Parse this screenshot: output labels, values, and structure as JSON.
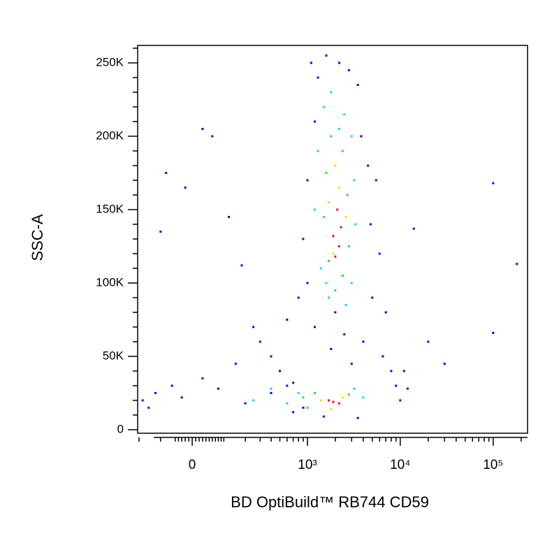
{
  "chart_data": {
    "type": "scatter",
    "xlabel": "BD OptiBuild™ RB744 CD59",
    "ylabel": "SSC-A",
    "xscale": "biexponential",
    "xlim": [
      -208,
      234600
    ],
    "ylim": [
      -2381,
      261905
    ],
    "xticks": [
      0,
      {
        "value": 1000,
        "label": "10³"
      },
      {
        "value": 10000,
        "label": "10⁴"
      },
      {
        "value": 100000,
        "label": "10⁵"
      }
    ],
    "xminorticks": [
      -200,
      -100,
      -50,
      -40,
      -30,
      -20,
      -10,
      10,
      20,
      30,
      40,
      50,
      60,
      70,
      80,
      90,
      100,
      200,
      300,
      400,
      500,
      600,
      700,
      800,
      900,
      2000,
      3000,
      4000,
      5000,
      6000,
      7000,
      8000,
      9000,
      20000,
      30000,
      40000,
      50000,
      60000,
      70000,
      80000,
      90000,
      200000
    ],
    "yticks": [
      0,
      {
        "value": 50000,
        "label": "50K"
      },
      {
        "value": 100000,
        "label": "100K"
      },
      {
        "value": 150000,
        "label": "150K"
      },
      {
        "value": 200000,
        "label": "200K"
      },
      {
        "value": 250000,
        "label": "250K"
      }
    ],
    "yminorticks": [
      10000,
      20000,
      30000,
      40000,
      60000,
      70000,
      80000,
      90000,
      110000,
      120000,
      130000,
      140000,
      160000,
      170000,
      180000,
      190000,
      210000,
      220000,
      230000,
      240000,
      260000
    ],
    "series": [
      {
        "color": "#0000ff",
        "x": [
          -180,
          -120,
          -60,
          -150,
          -30,
          30,
          80,
          150,
          200,
          300,
          400,
          500,
          600,
          700,
          800,
          900,
          1100,
          1300,
          1600,
          2200,
          2800,
          3500,
          1200,
          3800,
          4500,
          5500,
          1000,
          900,
          4800,
          6000,
          1000,
          5000,
          7000,
          6500,
          8000,
          9000,
          3500,
          1500,
          700,
          400,
          250,
          -100,
          -80,
          30,
          60,
          -20,
          120,
          180,
          100000,
          180000,
          100000,
          30000,
          20000,
          14000,
          11000,
          2500,
          1800,
          4000,
          3000,
          2000,
          1200,
          600,
          10000,
          12000
        ],
        "y": [
          20000,
          25000,
          30000,
          15000,
          22000,
          35000,
          28000,
          45000,
          18000,
          60000,
          25000,
          40000,
          75000,
          32000,
          90000,
          15000,
          250000,
          240000,
          255000,
          250000,
          245000,
          235000,
          210000,
          200000,
          180000,
          170000,
          170000,
          130000,
          140000,
          120000,
          100000,
          90000,
          80000,
          50000,
          40000,
          30000,
          8000,
          9000,
          12000,
          50000,
          70000,
          135000,
          175000,
          205000,
          200000,
          165000,
          145000,
          112000,
          168000,
          113000,
          66000,
          45000,
          60000,
          137000,
          40000,
          65000,
          55000,
          60000,
          45000,
          80000,
          70000,
          30000,
          20000,
          28000
        ]
      },
      {
        "color": "#00d8ff",
        "x": [
          1500,
          2500,
          1800,
          3000,
          1300,
          3200,
          1200,
          3300,
          1400,
          3000,
          1700,
          2600,
          400,
          800,
          3200,
          4000,
          250,
          600,
          2200,
          1600
        ],
        "y": [
          220000,
          215000,
          230000,
          200000,
          190000,
          170000,
          150000,
          140000,
          110000,
          100000,
          90000,
          85000,
          28000,
          25000,
          28000,
          22000,
          20000,
          18000,
          205000,
          100000
        ]
      },
      {
        "color": "#30e030",
        "x": [
          1800,
          2400,
          1600,
          2700,
          1500,
          2800,
          1700,
          2400,
          900,
          1200,
          2800,
          1000,
          2000
        ],
        "y": [
          200000,
          190000,
          175000,
          160000,
          145000,
          125000,
          115000,
          105000,
          22000,
          25000,
          24000,
          15000,
          95000
        ]
      },
      {
        "color": "#f0e000",
        "x": [
          2000,
          2200,
          1700,
          2600,
          1900,
          1400,
          2400,
          1800
        ],
        "y": [
          180000,
          165000,
          155000,
          145000,
          120000,
          20000,
          22000,
          14000
        ]
      },
      {
        "color": "#ee1010",
        "x": [
          2100,
          2300,
          1900,
          2200,
          2000,
          1900,
          2200,
          1700
        ],
        "y": [
          150000,
          138000,
          132000,
          125000,
          118000,
          19000,
          18000,
          20000
        ]
      }
    ]
  }
}
